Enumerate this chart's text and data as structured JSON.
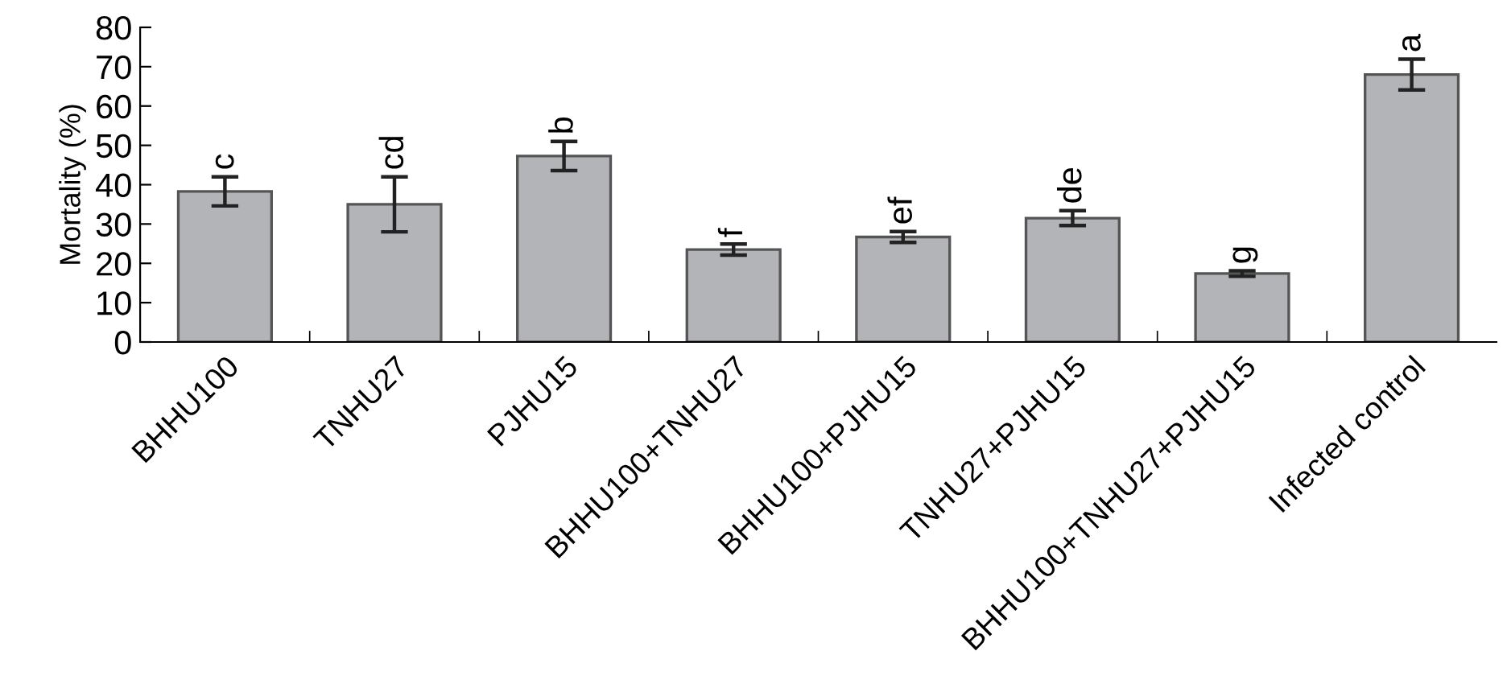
{
  "chart_data": {
    "type": "bar",
    "ylabel": "Mortality (%)",
    "categories": [
      "BHHU100",
      "TNHU27",
      "PJHU15",
      "BHHU100+TNHU27",
      "BHHU100+PJHU15",
      "TNHU27+PJHU15",
      "BHHU100+TNHU27+PJHU15",
      "Infected control"
    ],
    "values": [
      38.3,
      35.0,
      47.3,
      23.5,
      26.7,
      31.5,
      17.4,
      68.0
    ],
    "errors": [
      3.7,
      7.0,
      3.7,
      1.4,
      1.4,
      1.9,
      0.7,
      3.9
    ],
    "color": "#b3b4b8",
    "ylim": [
      0,
      80
    ],
    "yticks": [
      0,
      10,
      20,
      30,
      40,
      50,
      60,
      70,
      80
    ],
    "grid": false,
    "annotations": [
      {
        "text": "c",
        "x": "BHHU100",
        "y": 42.0
      },
      {
        "text": "cd",
        "x": "TNHU27",
        "y": 42.0
      },
      {
        "text": "b",
        "x": "PJHU15",
        "y": 51.0
      },
      {
        "text": "f",
        "x": "BHHU100+TNHU27",
        "y": 24.9
      },
      {
        "text": "ef",
        "x": "BHHU100+PJHU15",
        "y": 28.1
      },
      {
        "text": "de",
        "x": "TNHU27+PJHU15",
        "y": 33.4
      },
      {
        "text": "g",
        "x": "BHHU100+TNHU27+PJHU15",
        "y": 18.1
      },
      {
        "text": "a",
        "x": "Infected control",
        "y": 71.9
      }
    ]
  }
}
